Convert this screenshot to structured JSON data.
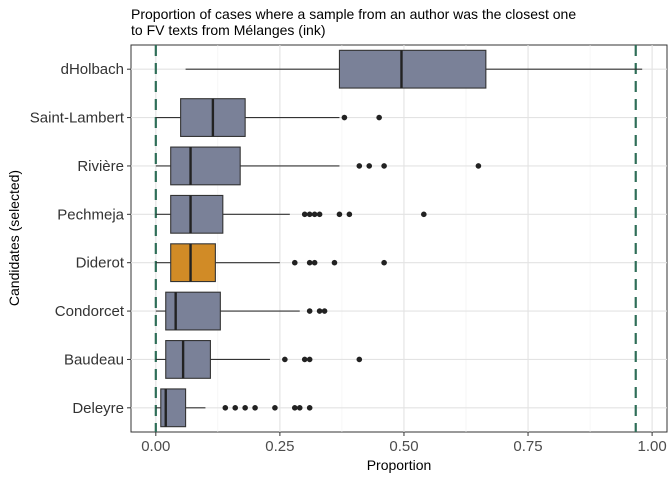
{
  "chart_data": {
    "type": "boxplot",
    "title": "Proportion of cases where a sample from an author was the closest one\nto FV texts from Mélanges (ink)",
    "xlabel": "Proportion",
    "ylabel": "Candidates (selected)",
    "xlim": [
      -0.05,
      1.03
    ],
    "xticks": [
      0.0,
      0.25,
      0.5,
      0.75,
      1.0
    ],
    "xtick_labels": [
      "0.00",
      "0.25",
      "0.50",
      "0.75",
      "1.00"
    ],
    "reference_lines": [
      0.0,
      0.967
    ],
    "grid": true,
    "colors": {
      "default_box": "#7a8198",
      "highlight_box": "#d18b26",
      "reference_line": "#2f6e58",
      "outlier": "#222222"
    },
    "categories": [
      "dHolbach",
      "Saint-Lambert",
      "Rivière",
      "Pechmeja",
      "Diderot",
      "Condorcet",
      "Baudeau",
      "Deleyre"
    ],
    "boxes": [
      {
        "name": "dHolbach",
        "whisker_low": 0.06,
        "q1": 0.37,
        "median": 0.495,
        "q3": 0.665,
        "whisker_high": 0.98,
        "outliers": [],
        "highlight": false
      },
      {
        "name": "Saint-Lambert",
        "whisker_low": 0.0,
        "q1": 0.05,
        "median": 0.115,
        "q3": 0.18,
        "whisker_high": 0.37,
        "outliers": [
          0.38,
          0.45
        ],
        "highlight": false
      },
      {
        "name": "Rivière",
        "whisker_low": 0.0,
        "q1": 0.03,
        "median": 0.07,
        "q3": 0.17,
        "whisker_high": 0.37,
        "outliers": [
          0.41,
          0.43,
          0.46,
          0.65
        ],
        "highlight": false
      },
      {
        "name": "Pechmeja",
        "whisker_low": 0.0,
        "q1": 0.03,
        "median": 0.07,
        "q3": 0.135,
        "whisker_high": 0.27,
        "outliers": [
          0.3,
          0.31,
          0.32,
          0.33,
          0.37,
          0.39,
          0.54
        ],
        "highlight": false
      },
      {
        "name": "Diderot",
        "whisker_low": 0.0,
        "q1": 0.03,
        "median": 0.07,
        "q3": 0.12,
        "whisker_high": 0.25,
        "outliers": [
          0.28,
          0.31,
          0.32,
          0.36,
          0.46
        ],
        "highlight": true
      },
      {
        "name": "Condorcet",
        "whisker_low": 0.0,
        "q1": 0.02,
        "median": 0.04,
        "q3": 0.13,
        "whisker_high": 0.29,
        "outliers": [
          0.31,
          0.33,
          0.34
        ],
        "highlight": false
      },
      {
        "name": "Baudeau",
        "whisker_low": 0.0,
        "q1": 0.02,
        "median": 0.055,
        "q3": 0.11,
        "whisker_high": 0.23,
        "outliers": [
          0.26,
          0.3,
          0.31,
          0.41
        ],
        "highlight": false
      },
      {
        "name": "Deleyre",
        "whisker_low": 0.0,
        "q1": 0.01,
        "median": 0.02,
        "q3": 0.06,
        "whisker_high": 0.1,
        "outliers": [
          0.14,
          0.16,
          0.18,
          0.2,
          0.24,
          0.28,
          0.29,
          0.31
        ],
        "highlight": false
      }
    ]
  }
}
